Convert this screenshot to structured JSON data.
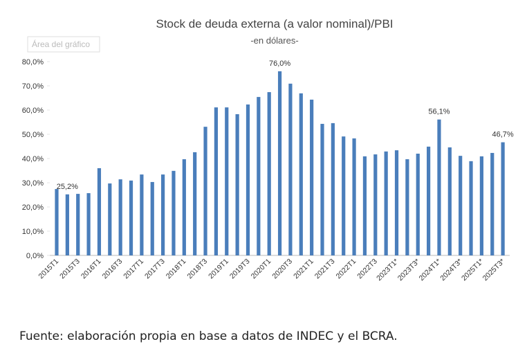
{
  "chart_data": {
    "type": "bar",
    "title": "Stock de deuda externa (a valor nominal)/PBI",
    "subtitle": "-en dólares-",
    "tooltip": "Área del gráfico",
    "categories": [
      "2015T1",
      null,
      "2015T3",
      null,
      "2016T1",
      null,
      "2016T3",
      null,
      "2017T1",
      null,
      "2017T3",
      null,
      "2018T1",
      null,
      "2018T3",
      null,
      "2019T1",
      null,
      "2019T3",
      null,
      "2020T1",
      null,
      "2020T3",
      null,
      "2021T1",
      null,
      "2021T3",
      null,
      "2022T1",
      null,
      "2022T3",
      null,
      "2023T1*",
      null,
      "2023T3*",
      null,
      "2024T1*",
      null,
      "2024T3*",
      null,
      "2025T1*",
      null,
      "2025T3*"
    ],
    "values": [
      27.4,
      25.2,
      25.4,
      25.7,
      36.0,
      29.7,
      31.4,
      30.9,
      33.4,
      30.3,
      33.4,
      34.9,
      39.7,
      42.6,
      53.1,
      61.1,
      61.1,
      58.3,
      62.3,
      65.4,
      67.4,
      76.0,
      70.9,
      66.9,
      64.3,
      54.3,
      54.6,
      49.1,
      48.3,
      40.9,
      41.7,
      42.9,
      43.4,
      39.7,
      42.0,
      44.9,
      56.1,
      44.6,
      41.1,
      38.9,
      40.9,
      42.3,
      46.7
    ],
    "value_labels": [
      null,
      "25,2%",
      null,
      null,
      null,
      null,
      null,
      null,
      null,
      null,
      null,
      null,
      null,
      null,
      null,
      null,
      null,
      null,
      null,
      null,
      null,
      "76,0%",
      null,
      null,
      null,
      null,
      null,
      null,
      null,
      null,
      null,
      null,
      null,
      null,
      null,
      null,
      "56,1%",
      null,
      null,
      null,
      null,
      null,
      "46,7%"
    ],
    "color": "#4a7ebb",
    "ylim": [
      0,
      80
    ],
    "yticks": [
      {
        "value": 0,
        "label": "0,0%"
      },
      {
        "value": 10,
        "label": "10,0%"
      },
      {
        "value": 20,
        "label": "20,0%"
      },
      {
        "value": 30,
        "label": "30,0%"
      },
      {
        "value": 40,
        "label": "40,0%"
      },
      {
        "value": 50,
        "label": "50,0%"
      },
      {
        "value": 60,
        "label": "60,0%"
      },
      {
        "value": 70,
        "label": "70,0%"
      },
      {
        "value": 80,
        "label": "80,0%"
      }
    ],
    "grid": false
  },
  "source": "Fuente: elaboración propia en base a datos de INDEC y el BCRA."
}
